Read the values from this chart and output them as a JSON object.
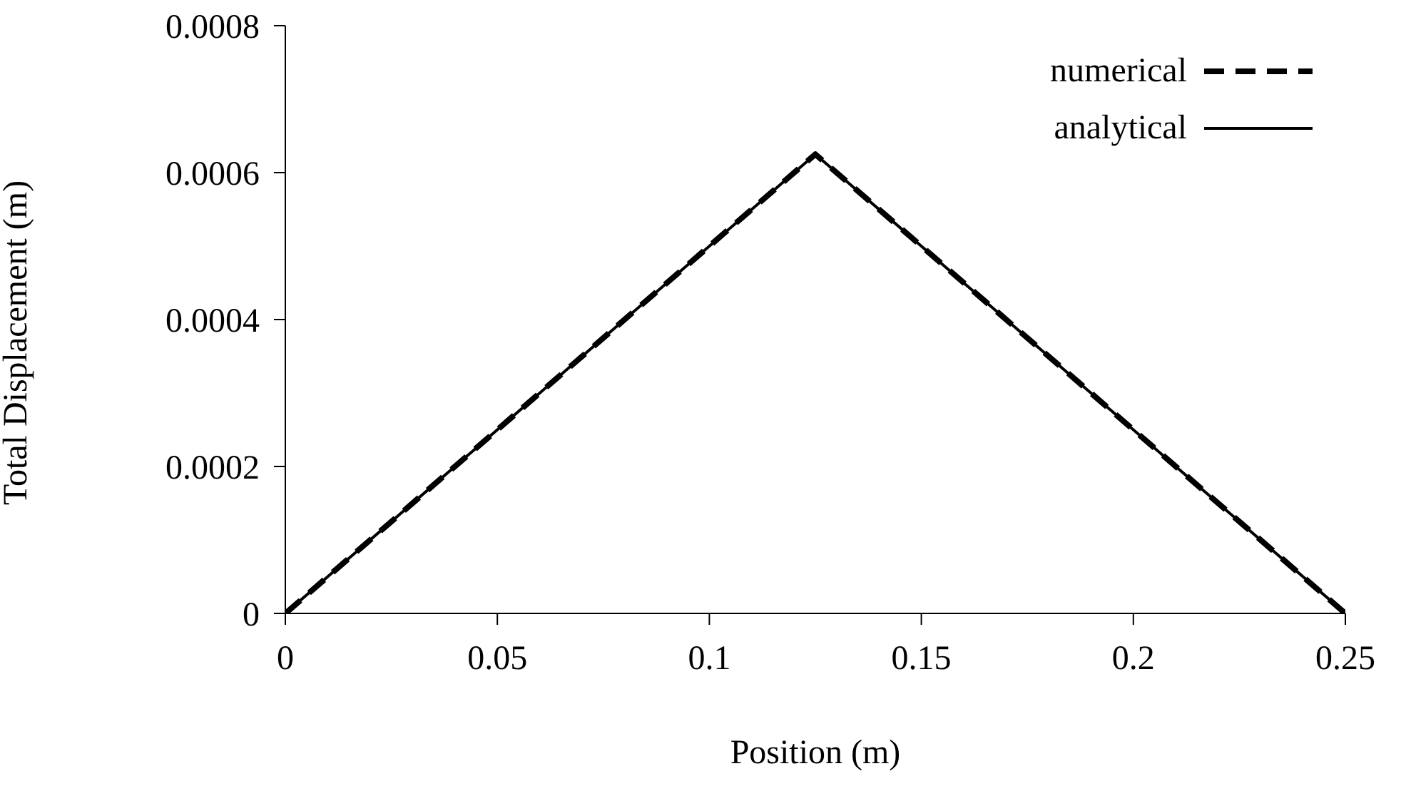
{
  "chart_data": {
    "type": "line",
    "xlabel": "Position (m)",
    "ylabel": "Total Displacement (m)",
    "x": [
      0,
      0.125,
      0.25
    ],
    "series": [
      {
        "name": "numerical",
        "color": "#000000",
        "values": [
          0,
          0.000625,
          0
        ],
        "line_style": "dashed"
      },
      {
        "name": "analytical",
        "color": "#000000",
        "values": [
          0,
          0.000625,
          0
        ],
        "line_style": "solid"
      }
    ],
    "xlim": [
      0,
      0.25
    ],
    "xticks": [
      0,
      0.05,
      0.1,
      0.15,
      0.2,
      0.25
    ],
    "ylim": [
      0,
      0.0008
    ],
    "yticks": [
      0,
      0.0002,
      0.0004,
      0.0006,
      0.0008
    ],
    "grid": false,
    "legend": "top right",
    "marker": "none"
  }
}
